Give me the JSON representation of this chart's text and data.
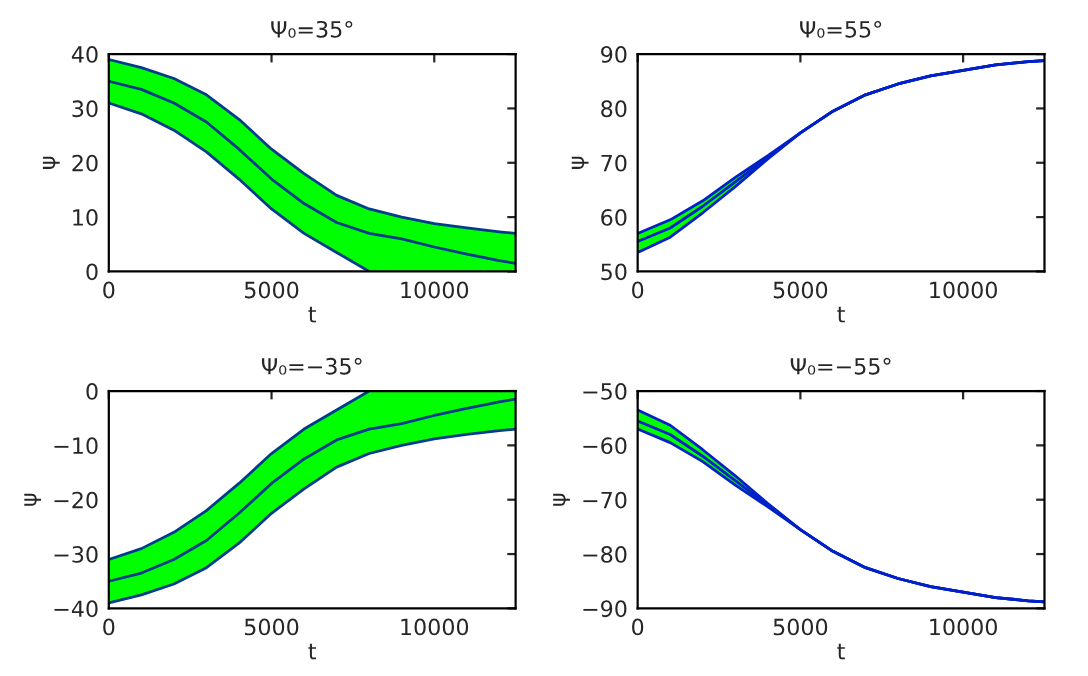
{
  "chart_data": [
    {
      "type": "line",
      "title": "Ψ₀=35°",
      "xlabel": "t",
      "ylabel": "ψ",
      "xlim": [
        0,
        12500
      ],
      "ylim": [
        0,
        40
      ],
      "xticks": [
        0,
        5000,
        10000
      ],
      "yticks": [
        0,
        10,
        20,
        30,
        40
      ],
      "grid": false,
      "legend": false,
      "x": [
        0,
        1000,
        2000,
        3000,
        4000,
        5000,
        6000,
        7000,
        8000,
        9000,
        10000,
        11000,
        12000,
        12500
      ],
      "series": [
        {
          "color": "#003c8c",
          "values": [
            35,
            33.5,
            31,
            27.5,
            22.5,
            17,
            12.5,
            9,
            7,
            6,
            4.5,
            3.2,
            2,
            1.5
          ],
          "upper": [
            39,
            37.5,
            35.5,
            32.5,
            28,
            22.5,
            18,
            14,
            11.5,
            10,
            8.8,
            8,
            7.3,
            7
          ],
          "lower": [
            31,
            29,
            26,
            22,
            17,
            11.5,
            7,
            3.5,
            0,
            0,
            0,
            0,
            0,
            0
          ]
        },
        {
          "color": "#003c8c",
          "values": [
            39,
            37.5,
            35.5,
            32.5,
            28,
            22.5,
            18,
            14,
            11.5,
            10,
            8.8,
            8,
            7.3,
            7
          ]
        },
        {
          "color": "#003c8c",
          "values": [
            31,
            29,
            26,
            22,
            17,
            11.5,
            7,
            3.5,
            0,
            null,
            null,
            null,
            null,
            null
          ]
        }
      ]
    },
    {
      "type": "line",
      "title": "Ψ₀=55°",
      "xlabel": "t",
      "ylabel": "ψ",
      "xlim": [
        0,
        12500
      ],
      "ylim": [
        50,
        90
      ],
      "xticks": [
        0,
        5000,
        10000
      ],
      "yticks": [
        50,
        60,
        70,
        80,
        90
      ],
      "grid": false,
      "legend": false,
      "x": [
        0,
        1000,
        2000,
        3000,
        4000,
        5000,
        6000,
        7000,
        8000,
        9000,
        10000,
        11000,
        12000,
        12500
      ],
      "series": [
        {
          "color": "#0020c8",
          "values": [
            55.5,
            58,
            62,
            66.5,
            71,
            75.5,
            79.5,
            82.5,
            84.5,
            86,
            87,
            88,
            88.6,
            88.8
          ],
          "upper": [
            57,
            59.5,
            63,
            67.3,
            71.3,
            75.5,
            79.5,
            82.5,
            84.5,
            86,
            87,
            88,
            88.6,
            88.8
          ],
          "lower": [
            53.5,
            56.3,
            60.8,
            65.6,
            70.7,
            75.5,
            79.5,
            82.5,
            84.5,
            86,
            87,
            88,
            88.6,
            88.8
          ]
        },
        {
          "color": "#0020c8",
          "values": [
            57,
            59.5,
            63,
            67.3,
            71.3,
            75.5,
            79.5,
            82.5,
            84.5,
            86,
            87,
            88,
            88.6,
            88.8
          ]
        },
        {
          "color": "#0020c8",
          "values": [
            53.5,
            56.3,
            60.8,
            65.6,
            70.7,
            75.5,
            79.5,
            82.5,
            84.5,
            86,
            87,
            88,
            88.6,
            88.8
          ]
        }
      ]
    },
    {
      "type": "line",
      "title": "Ψ₀=−35°",
      "xlabel": "t",
      "ylabel": "ψ",
      "xlim": [
        0,
        12500
      ],
      "ylim": [
        -40,
        0
      ],
      "xticks": [
        0,
        5000,
        10000
      ],
      "yticks": [
        {
          "value": -40,
          "label": "−40"
        },
        {
          "value": -30,
          "label": "−30"
        },
        {
          "value": -20,
          "label": "−20"
        },
        {
          "value": -10,
          "label": "−10"
        },
        0
      ],
      "grid": false,
      "legend": false,
      "x": [
        0,
        1000,
        2000,
        3000,
        4000,
        5000,
        6000,
        7000,
        8000,
        9000,
        10000,
        11000,
        12000,
        12500
      ],
      "series": [
        {
          "color": "#003c8c",
          "values": [
            -35,
            -33.5,
            -31,
            -27.5,
            -22.5,
            -17,
            -12.5,
            -9,
            -7,
            -6,
            -4.5,
            -3.2,
            -2,
            -1.5
          ],
          "upper": [
            -31,
            -29,
            -26,
            -22,
            -17,
            -11.5,
            -7,
            -3.5,
            0,
            0,
            0,
            0,
            0,
            0
          ],
          "lower": [
            -39,
            -37.5,
            -35.5,
            -32.5,
            -28,
            -22.5,
            -18,
            -14,
            -11.5,
            -10,
            -8.8,
            -8,
            -7.3,
            -7
          ]
        },
        {
          "color": "#003c8c",
          "values": [
            -31,
            -29,
            -26,
            -22,
            -17,
            -11.5,
            -7,
            -3.5,
            0,
            null,
            null,
            null,
            null,
            null
          ]
        },
        {
          "color": "#003c8c",
          "values": [
            -39,
            -37.5,
            -35.5,
            -32.5,
            -28,
            -22.5,
            -18,
            -14,
            -11.5,
            -10,
            -8.8,
            -8,
            -7.3,
            -7
          ]
        }
      ]
    },
    {
      "type": "line",
      "title": "Ψ₀=−55°",
      "xlabel": "t",
      "ylabel": "ψ",
      "xlim": [
        0,
        12500
      ],
      "ylim": [
        -90,
        -50
      ],
      "xticks": [
        0,
        5000,
        10000
      ],
      "yticks": [
        {
          "value": -90,
          "label": "−90"
        },
        {
          "value": -80,
          "label": "−80"
        },
        {
          "value": -70,
          "label": "−70"
        },
        {
          "value": -60,
          "label": "−60"
        },
        {
          "value": -50,
          "label": "−50"
        }
      ],
      "grid": false,
      "legend": false,
      "x": [
        0,
        1000,
        2000,
        3000,
        4000,
        5000,
        6000,
        7000,
        8000,
        9000,
        10000,
        11000,
        12000,
        12500
      ],
      "series": [
        {
          "color": "#0020c8",
          "values": [
            -55.5,
            -58,
            -62,
            -66.5,
            -71,
            -75.5,
            -79.5,
            -82.5,
            -84.5,
            -86,
            -87,
            -88,
            -88.6,
            -88.8
          ],
          "upper": [
            -53.5,
            -56.3,
            -60.8,
            -65.6,
            -70.7,
            -75.5,
            -79.5,
            -82.5,
            -84.5,
            -86,
            -87,
            -88,
            -88.6,
            -88.8
          ],
          "lower": [
            -57,
            -59.5,
            -63,
            -67.3,
            -71.3,
            -75.5,
            -79.5,
            -82.5,
            -84.5,
            -86,
            -87,
            -88,
            -88.6,
            -88.8
          ]
        },
        {
          "color": "#0020c8",
          "values": [
            -53.5,
            -56.3,
            -60.8,
            -65.6,
            -70.7,
            -75.5,
            -79.5,
            -82.5,
            -84.5,
            -86,
            -87,
            -88,
            -88.6,
            -88.8
          ]
        },
        {
          "color": "#0020c8",
          "values": [
            -57,
            -59.5,
            -63,
            -67.3,
            -71.3,
            -75.5,
            -79.5,
            -82.5,
            -84.5,
            -86,
            -87,
            -88,
            -88.6,
            -88.8
          ]
        }
      ]
    }
  ]
}
